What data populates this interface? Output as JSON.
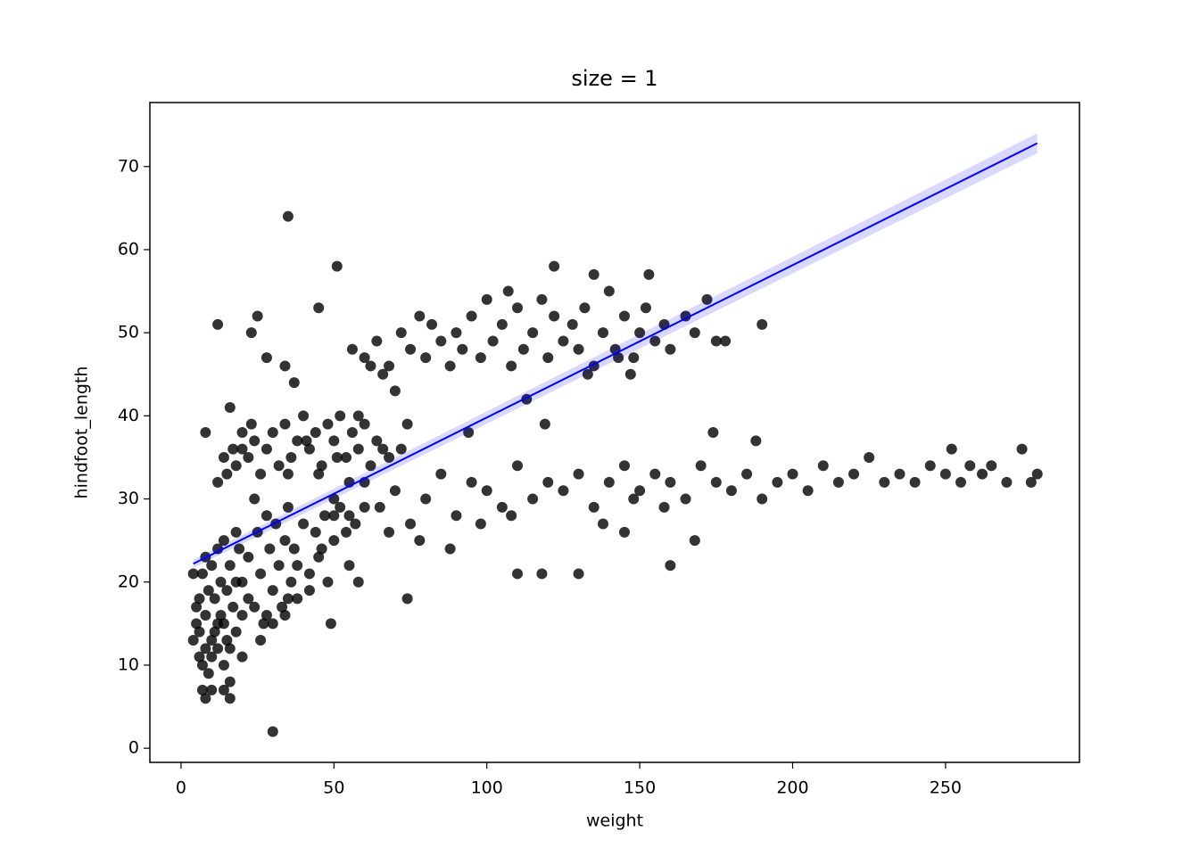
{
  "chart_data": {
    "type": "scatter",
    "title": "size = 1",
    "xlabel": "weight",
    "ylabel": "hindfoot_length",
    "xlim": [
      -10.2,
      293.8
    ],
    "ylim": [
      -1.7,
      77.7
    ],
    "xticks": [
      0,
      50,
      100,
      150,
      200,
      250
    ],
    "yticks": [
      0,
      10,
      20,
      30,
      40,
      50,
      60,
      70
    ],
    "color": "#000000",
    "x": [
      4,
      5,
      5,
      6,
      6,
      7,
      7,
      8,
      8,
      9,
      9,
      10,
      10,
      11,
      11,
      12,
      12,
      13,
      13,
      14,
      14,
      15,
      15,
      16,
      16,
      17,
      18,
      18,
      19,
      20,
      4,
      6,
      8,
      10,
      12,
      14,
      16,
      18,
      20,
      22,
      20,
      22,
      24,
      25,
      26,
      27,
      28,
      29,
      30,
      31,
      32,
      33,
      34,
      35,
      36,
      37,
      38,
      40,
      42,
      44,
      45,
      47,
      48,
      50,
      52,
      54,
      55,
      57,
      58,
      60,
      24,
      26,
      30,
      34,
      38,
      42,
      46,
      50,
      35,
      28,
      12,
      14,
      15,
      17,
      18,
      20,
      22,
      24,
      26,
      28,
      30,
      32,
      34,
      36,
      38,
      40,
      42,
      44,
      46,
      48,
      50,
      52,
      54,
      56,
      58,
      60,
      62,
      64,
      66,
      68,
      72,
      74,
      23,
      45,
      55,
      35,
      41,
      51,
      58,
      20,
      60,
      64,
      68,
      72,
      75,
      78,
      80,
      82,
      85,
      88,
      90,
      92,
      95,
      98,
      100,
      102,
      105,
      108,
      110,
      112,
      115,
      118,
      120,
      122,
      125,
      128,
      130,
      132,
      135,
      138,
      140,
      142,
      145,
      148,
      150,
      152,
      155,
      158,
      160,
      165,
      168,
      172,
      175,
      143,
      147,
      133,
      66,
      70,
      62,
      56,
      50,
      55,
      60,
      65,
      70,
      75,
      80,
      85,
      90,
      95,
      100,
      105,
      110,
      115,
      120,
      125,
      130,
      135,
      140,
      145,
      150,
      155,
      160,
      165,
      170,
      175,
      180,
      185,
      190,
      195,
      200,
      205,
      210,
      215,
      220,
      225,
      230,
      235,
      240,
      245,
      250,
      255,
      258,
      262,
      265,
      270,
      275,
      278,
      280,
      252,
      68,
      78,
      88,
      98,
      108,
      138,
      148,
      158,
      174,
      188,
      35,
      51,
      12,
      25,
      23,
      28,
      30,
      49,
      74,
      110,
      118,
      130,
      160,
      168,
      145,
      190,
      178,
      122,
      135,
      153,
      107,
      45,
      16,
      8,
      119,
      113,
      94,
      10,
      8,
      16,
      34,
      37,
      14,
      7
    ],
    "values": [
      13,
      15,
      17,
      14,
      18,
      10,
      21,
      12,
      16,
      19,
      9,
      11,
      22,
      14,
      18,
      12,
      24,
      16,
      20,
      10,
      15,
      13,
      19,
      8,
      22,
      17,
      14,
      20,
      24,
      16,
      21,
      11,
      23,
      13,
      15,
      25,
      12,
      26,
      11,
      18,
      20,
      23,
      17,
      26,
      21,
      15,
      28,
      24,
      19,
      27,
      22,
      17,
      25,
      29,
      20,
      24,
      18,
      27,
      21,
      26,
      23,
      28,
      20,
      25,
      29,
      26,
      22,
      27,
      20,
      29,
      30,
      13,
      15,
      16,
      22,
      19,
      24,
      28,
      18,
      16,
      32,
      35,
      33,
      36,
      34,
      38,
      35,
      37,
      33,
      36,
      38,
      34,
      39,
      35,
      37,
      40,
      36,
      38,
      34,
      39,
      37,
      40,
      35,
      38,
      36,
      39,
      34,
      37,
      36,
      35,
      36,
      39,
      39,
      33,
      32,
      33,
      37,
      35,
      40,
      36,
      47,
      49,
      46,
      50,
      48,
      52,
      47,
      51,
      49,
      46,
      50,
      48,
      52,
      47,
      54,
      49,
      51,
      46,
      53,
      48,
      50,
      54,
      47,
      52,
      49,
      51,
      48,
      53,
      46,
      50,
      55,
      48,
      52,
      47,
      50,
      53,
      49,
      51,
      48,
      52,
      50,
      54,
      49,
      47,
      45,
      45,
      45,
      43,
      46,
      48,
      30,
      28,
      32,
      29,
      31,
      27,
      30,
      33,
      28,
      32,
      31,
      29,
      34,
      30,
      32,
      31,
      33,
      29,
      32,
      34,
      31,
      33,
      32,
      30,
      34,
      32,
      31,
      33,
      30,
      32,
      33,
      31,
      34,
      32,
      33,
      35,
      32,
      33,
      32,
      34,
      33,
      32,
      34,
      33,
      34,
      32,
      36,
      32,
      33,
      36,
      26,
      25,
      24,
      27,
      28,
      27,
      30,
      29,
      38,
      37,
      64,
      58,
      51,
      52,
      50,
      47,
      2,
      15,
      18,
      21,
      21,
      21,
      22,
      25,
      26,
      51,
      49,
      58,
      57,
      57,
      55,
      53,
      41,
      38,
      39,
      42,
      38,
      7,
      6,
      6,
      46,
      44,
      7,
      7
    ],
    "regression": {
      "color": "#0000ff",
      "x": [
        4,
        280
      ],
      "y": [
        22.2,
        72.8
      ],
      "ci_lower": [
        21.7,
        71.6
      ],
      "ci_upper": [
        22.7,
        74.0
      ]
    }
  }
}
